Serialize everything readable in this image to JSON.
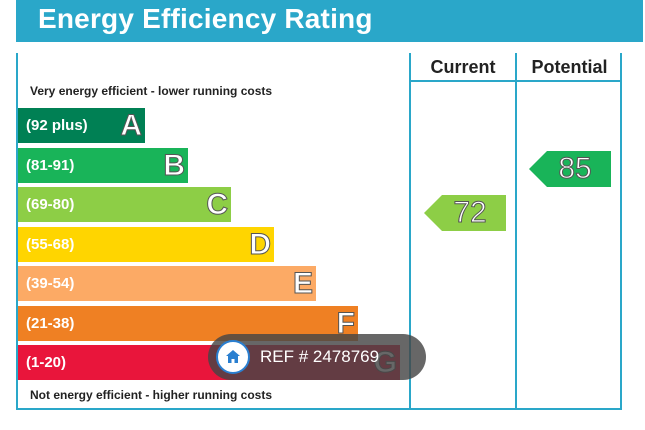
{
  "title": "Energy Efficiency Rating",
  "columns": {
    "current": "Current",
    "potential": "Potential"
  },
  "captions": {
    "top": "Very energy efficient - lower running costs",
    "bottom": "Not energy efficient - higher running costs"
  },
  "bands": [
    {
      "range": "(92 plus)",
      "letter": "A",
      "color": "#008054"
    },
    {
      "range": "(81-91)",
      "letter": "B",
      "color": "#19b459"
    },
    {
      "range": "(69-80)",
      "letter": "C",
      "color": "#8dce46"
    },
    {
      "range": "(55-68)",
      "letter": "D",
      "color": "#ffd500"
    },
    {
      "range": "(39-54)",
      "letter": "E",
      "color": "#fcaa65"
    },
    {
      "range": "(21-38)",
      "letter": "F",
      "color": "#ef8023"
    },
    {
      "range": "(1-20)",
      "letter": "G",
      "color": "#e9153b"
    }
  ],
  "ratings": {
    "current": {
      "value": "72",
      "band": "C",
      "color": "#8dce46"
    },
    "potential": {
      "value": "85",
      "band": "B",
      "color": "#19b459"
    }
  },
  "watermark": {
    "icon": "home-icon",
    "text": "REF # 2478769"
  }
}
